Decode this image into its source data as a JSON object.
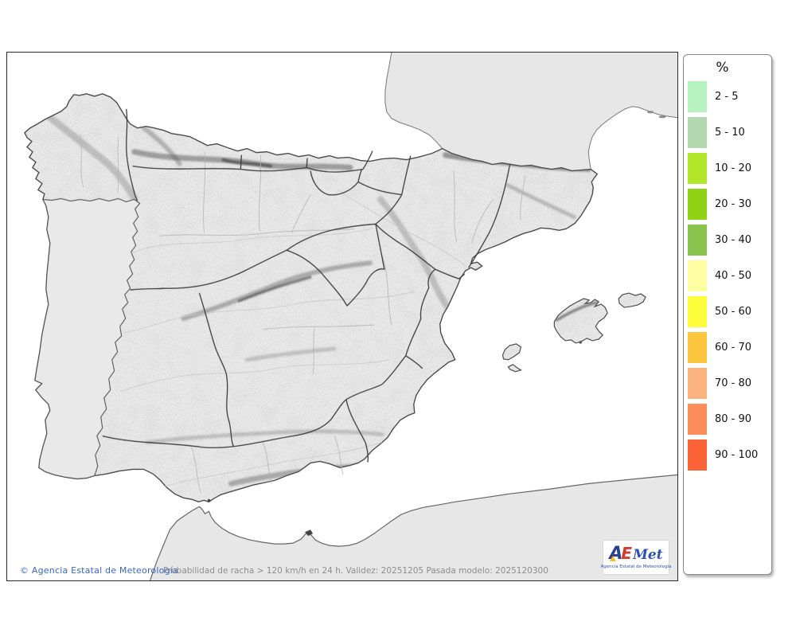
{
  "legend": {
    "title": "%",
    "items": [
      {
        "label": "2 - 5",
        "color": "#b5f2c0"
      },
      {
        "label": "5 - 10",
        "color": "#b2d8b0"
      },
      {
        "label": "10 - 20",
        "color": "#b2e62a"
      },
      {
        "label": "20 - 30",
        "color": "#90d316"
      },
      {
        "label": "30 - 40",
        "color": "#8ac24e"
      },
      {
        "label": "40 - 50",
        "color": "#fdfda1"
      },
      {
        "label": "50 - 60",
        "color": "#fdfd3c"
      },
      {
        "label": "60 - 70",
        "color": "#fbc53e"
      },
      {
        "label": "70 - 80",
        "color": "#fcb37e"
      },
      {
        "label": "80 - 90",
        "color": "#fb8e5b"
      },
      {
        "label": "90 - 100",
        "color": "#fa6335"
      }
    ]
  },
  "footer": {
    "copyright": "© Agencia Estatal de Meteorología",
    "caption": "Probabilidad de racha > 120 km/h en 24 h. Validez: 20251205 Pasada modelo: 2025120300"
  },
  "logo": {
    "a": "A",
    "e": "E",
    "met": "Met",
    "subtitle": "Agencia Estatal de Meteorología"
  },
  "colors": {
    "sea": "#ffffff",
    "spain_land": "#ebebeb",
    "neighbor_land": "#e7e7e7",
    "region_border": "#3c3c3c",
    "province_border": "#b4b4b4",
    "copyright_blue": "#3a66c4",
    "caption_gray": "#8d8d8d",
    "logo_blue": "#27418f",
    "logo_red": "#d23b2f",
    "logo_yellow": "#f0c020"
  }
}
